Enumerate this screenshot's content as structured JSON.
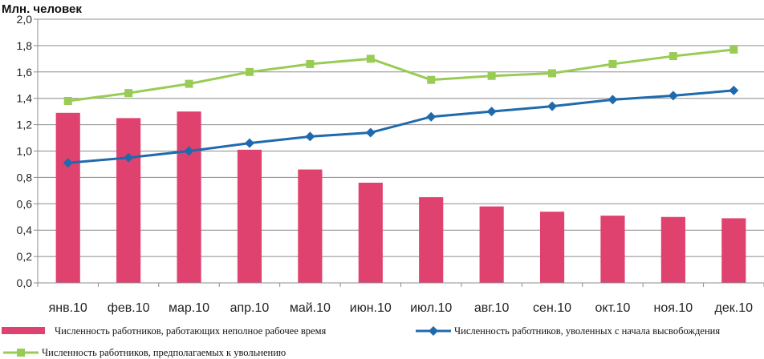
{
  "chart_data": {
    "type": "bar+line",
    "title": "",
    "ylabel": "Млн. человек",
    "xlabel": "",
    "ylim": [
      0,
      2
    ],
    "ytick_values": [
      0,
      0.2,
      0.4,
      0.6,
      0.8,
      1.0,
      1.2,
      1.4,
      1.6,
      1.8,
      2.0
    ],
    "ytick_labels": [
      "0,0",
      "0,2",
      "0,4",
      "0,6",
      "0,8",
      "1,0",
      "1,2",
      "1,4",
      "1,6",
      "1,8",
      "2,0"
    ],
    "grid": true,
    "legend_position": "bottom",
    "categories": [
      "янв.10",
      "фев.10",
      "мар.10",
      "апр.10",
      "май.10",
      "июн.10",
      "июл.10",
      "авг.10",
      "сен.10",
      "окт.10",
      "ноя.10",
      "дек.10"
    ],
    "series": [
      {
        "name": "Численность работников, работающих неполное рабочее время",
        "type": "bar",
        "color": "#e0426f",
        "values": [
          1.29,
          1.25,
          1.3,
          1.01,
          0.86,
          0.76,
          0.65,
          0.58,
          0.54,
          0.51,
          0.5,
          0.49
        ]
      },
      {
        "name": "Численность работников, уволенных с начала высвобождения",
        "type": "line",
        "marker": "diamond",
        "color": "#1f6aad",
        "values": [
          0.91,
          0.95,
          1.0,
          1.06,
          1.11,
          1.14,
          1.26,
          1.3,
          1.34,
          1.39,
          1.42,
          1.46
        ]
      },
      {
        "name": "Численность работников, предполагаемых к увольнению",
        "type": "line",
        "marker": "square",
        "color": "#99cc55",
        "values": [
          1.38,
          1.44,
          1.51,
          1.6,
          1.66,
          1.7,
          1.54,
          1.57,
          1.59,
          1.66,
          1.72,
          1.77
        ]
      }
    ]
  }
}
